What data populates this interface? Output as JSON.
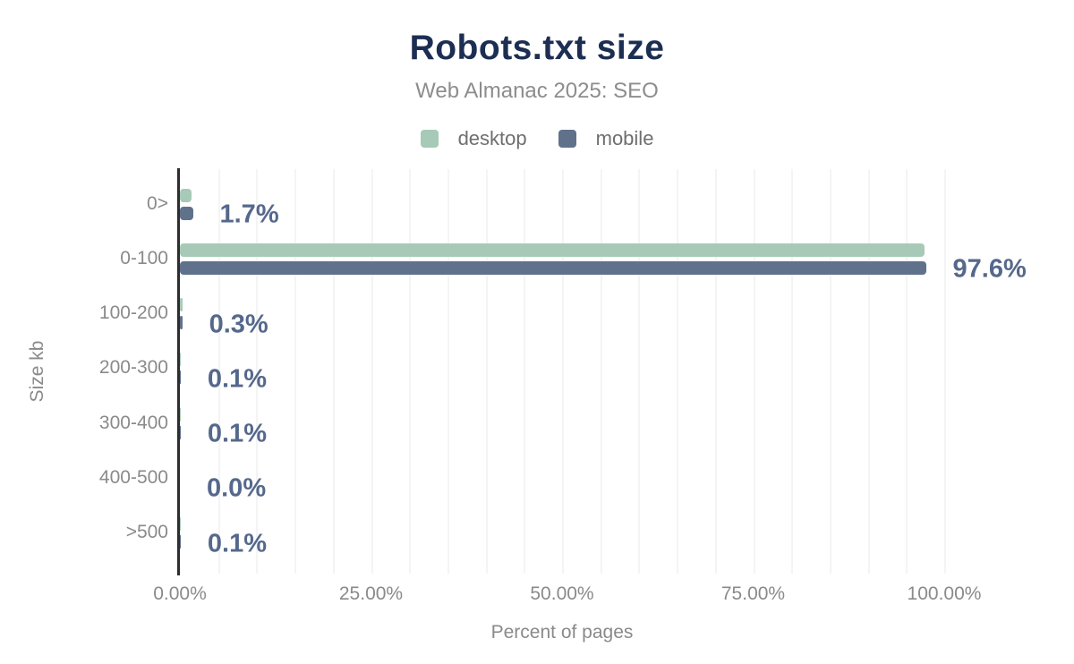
{
  "header": {
    "title": "Robots.txt size",
    "subtitle": "Web Almanac 2025: SEO"
  },
  "chart_data": {
    "type": "bar",
    "orientation": "horizontal",
    "title": "Robots.txt size",
    "subtitle": "Web Almanac 2025: SEO",
    "categories": [
      "0>",
      "0-100",
      "100-200",
      "200-300",
      "300-400",
      "400-500",
      ">500"
    ],
    "series": [
      {
        "name": "desktop",
        "color": "#a7cab8",
        "values": [
          1.5,
          97.4,
          0.3,
          0.1,
          0.1,
          0.0,
          0.1
        ]
      },
      {
        "name": "mobile",
        "color": "#60718c",
        "values": [
          1.7,
          97.6,
          0.3,
          0.1,
          0.1,
          0.0,
          0.1
        ]
      }
    ],
    "bar_labels": [
      "1.7%",
      "97.6%",
      "0.3%",
      "0.1%",
      "0.1%",
      "0.0%",
      "0.1%"
    ],
    "xlabel": "Percent of pages",
    "ylabel": "Size kb",
    "xlim": [
      0,
      100
    ],
    "x_tick_values": [
      0,
      25,
      50,
      75,
      100
    ],
    "x_tick_labels": [
      "0.00%",
      "25.00%",
      "50.00%",
      "75.00%",
      "100.00%"
    ],
    "gridline_step_percent": 5,
    "grid": "vertical",
    "legend_position": "top"
  },
  "colors": {
    "title": "#1c2e52",
    "subtitle": "#8d8d8d",
    "axis_text": "#8a8a8a",
    "value_label": "#55688c",
    "axis_line": "#2d2d2d",
    "gridline": "#f4f4f4",
    "background": "#ffffff"
  }
}
